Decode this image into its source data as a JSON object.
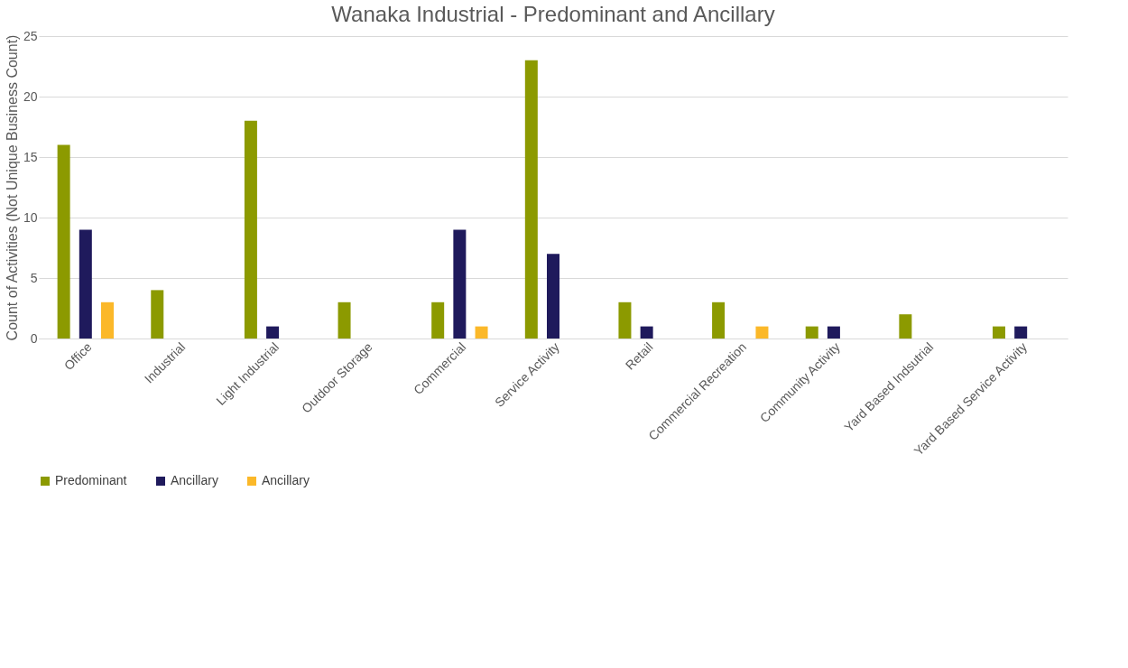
{
  "chart_data": {
    "type": "bar",
    "title": "Wanaka Industrial - Predominant and Ancillary",
    "ylabel": "Count of Activities (Not Unique Business Count)",
    "categories": [
      "Office",
      "Industrial",
      "Light Industrial",
      "Outdoor Storage",
      "Commercial",
      "Service Activity",
      "Retail",
      "Commercial Recreation",
      "Community Activity",
      "Yard Based Indsutrial",
      "Yard Based Service Activity"
    ],
    "series": [
      {
        "name": "Predominant",
        "color": "#8c9a00",
        "values": [
          16,
          4,
          18,
          3,
          3,
          23,
          3,
          3,
          1,
          2,
          1
        ]
      },
      {
        "name": "Ancillary",
        "color": "#1f1a5c",
        "values": [
          9,
          null,
          1,
          null,
          9,
          7,
          1,
          null,
          1,
          null,
          1
        ]
      },
      {
        "name": "Ancillary",
        "color": "#fbb829",
        "values": [
          3,
          null,
          null,
          null,
          1,
          null,
          null,
          1,
          null,
          null,
          null
        ]
      }
    ],
    "ylim": [
      0,
      25
    ],
    "yticks": [
      0,
      5,
      10,
      15,
      20,
      25
    ],
    "grid": "y",
    "legend": "bottom"
  }
}
